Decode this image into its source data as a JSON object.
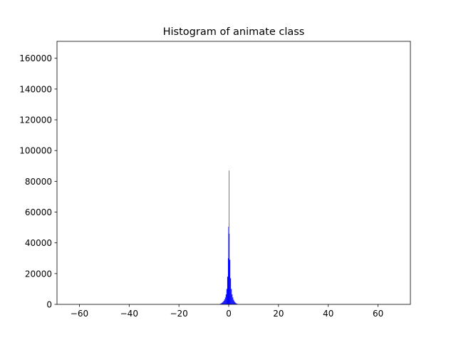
{
  "chart_data": {
    "type": "bar",
    "title": "Histogram of animate class",
    "xlabel": "",
    "ylabel": "",
    "xlim": [
      -69,
      73
    ],
    "ylim": [
      0,
      171000
    ],
    "xticks": [
      -60,
      -40,
      -20,
      0,
      20,
      40,
      60
    ],
    "xtick_labels": [
      "−60",
      "−40",
      "−20",
      "0",
      "20",
      "40",
      "60"
    ],
    "yticks": [
      0,
      20000,
      40000,
      60000,
      80000,
      100000,
      120000,
      140000,
      160000
    ],
    "ytick_labels": [
      "0",
      "20000",
      "40000",
      "60000",
      "80000",
      "100000",
      "120000",
      "140000",
      "160000"
    ],
    "grid": false,
    "bar_color": "#0000ff",
    "bins": [
      {
        "x": -3.6,
        "w": 0.3,
        "value": 300
      },
      {
        "x": -3.3,
        "w": 0.3,
        "value": 500
      },
      {
        "x": -3.0,
        "w": 0.3,
        "value": 800
      },
      {
        "x": -2.7,
        "w": 0.3,
        "value": 1200
      },
      {
        "x": -2.4,
        "w": 0.3,
        "value": 1700
      },
      {
        "x": -2.1,
        "w": 0.3,
        "value": 2300
      },
      {
        "x": -1.8,
        "w": 0.3,
        "value": 3200
      },
      {
        "x": -1.5,
        "w": 0.3,
        "value": 4500
      },
      {
        "x": -1.2,
        "w": 0.3,
        "value": 6500
      },
      {
        "x": -0.9,
        "w": 0.3,
        "value": 10000
      },
      {
        "x": -0.6,
        "w": 0.3,
        "value": 18000
      },
      {
        "x": -0.3,
        "w": 0.15,
        "value": 30000
      },
      {
        "x": -0.15,
        "w": 0.15,
        "value": 50500
      },
      {
        "x": 0.0,
        "w": 0.15,
        "value": 87000
      },
      {
        "x": 0.15,
        "w": 0.15,
        "value": 46000
      },
      {
        "x": 0.3,
        "w": 0.3,
        "value": 29000
      },
      {
        "x": 0.6,
        "w": 0.3,
        "value": 17000
      },
      {
        "x": 0.9,
        "w": 0.3,
        "value": 10000
      },
      {
        "x": 1.2,
        "w": 0.3,
        "value": 6500
      },
      {
        "x": 1.5,
        "w": 0.3,
        "value": 4500
      },
      {
        "x": 1.8,
        "w": 0.3,
        "value": 3000
      },
      {
        "x": 2.1,
        "w": 0.3,
        "value": 2000
      },
      {
        "x": 2.4,
        "w": 0.3,
        "value": 1300
      },
      {
        "x": 2.7,
        "w": 0.3,
        "value": 800
      },
      {
        "x": 3.0,
        "w": 0.3,
        "value": 500
      },
      {
        "x": 3.3,
        "w": 0.3,
        "value": 300
      }
    ]
  }
}
